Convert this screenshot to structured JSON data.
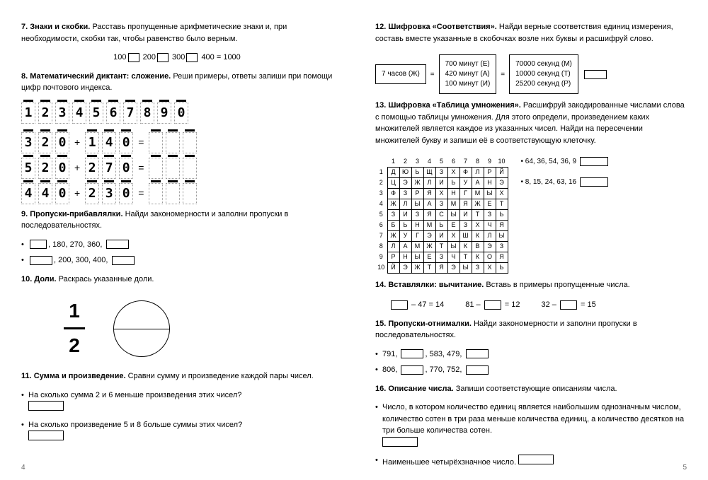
{
  "left": {
    "t7": {
      "num": "7.",
      "title": "Знаки и скобки.",
      "text": "Расставь пропущенные арифметические знаки и, при необходимости, скобки так, чтобы равенство было верным.",
      "expr_parts": [
        "100",
        "200",
        "300",
        "400 = 1000"
      ]
    },
    "t8": {
      "num": "8.",
      "title": "Математический диктант: сложение.",
      "text": "Реши примеры, ответы запиши при помощи цифр почтового индекса.",
      "sample": [
        "1",
        "2",
        "3",
        "4",
        "5",
        "6",
        "7",
        "8",
        "9",
        "0"
      ],
      "rows": [
        {
          "a": [
            "3",
            "2",
            "0"
          ],
          "op": "+",
          "b": [
            "1",
            "4",
            "0"
          ]
        },
        {
          "a": [
            "5",
            "2",
            "0"
          ],
          "op": "+",
          "b": [
            "2",
            "7",
            "0"
          ]
        },
        {
          "a": [
            "4",
            "4",
            "0"
          ],
          "op": "+",
          "b": [
            "2",
            "3",
            "0"
          ]
        }
      ]
    },
    "t9": {
      "num": "9.",
      "title": "Пропуски-прибавлялки.",
      "text": "Найди закономерности и заполни пропуски в последовательностях.",
      "seqs": [
        {
          "pre_blank": 2,
          "mid": ", 180, 270, 360, ",
          "post_blank": 3
        },
        {
          "pre_blank": 3,
          "mid": ", 200, 300, 400, ",
          "post_blank": 3
        }
      ]
    },
    "t10": {
      "num": "10.",
      "title": "Доли.",
      "text": "Раскрась указанные доли.",
      "frac_n": "1",
      "frac_d": "2"
    },
    "t11": {
      "num": "11.",
      "title": "Сумма и произведение.",
      "text": "Сравни сумму и произведение каждой пары чисел.",
      "q1": "На сколько сумма 2 и 6 меньше произведения этих чисел?",
      "q2": "На сколько произведение 5 и 8 больше суммы этих чисел?"
    },
    "pagenum": "4"
  },
  "right": {
    "t12": {
      "num": "12.",
      "title": "Шифровка «Соответствия».",
      "text": "Найди верные соответствия единиц измерения, составь вместе указанные в скобочках возле них буквы и расшифруй слово.",
      "col1": "7 часов (Ж)",
      "col2": [
        "700 минут (Е)",
        "420 минут (А)",
        "100 минут (И)"
      ],
      "col3": [
        "70000 секунд (М)",
        "10000 секунд (Т)",
        "25200 секунд (Р)"
      ]
    },
    "t13": {
      "num": "13.",
      "title": "Шифровка «Таблица умножения».",
      "text": "Расшифруй закодированные числами слова с помощью таблицы умножения. Для этого определи, произведением каких множителей является каждое из указанных чисел. Найди на пересечении множителей букву и запиши её в соответствующую клеточку.",
      "cols": [
        "1",
        "2",
        "3",
        "4",
        "5",
        "6",
        "7",
        "8",
        "9",
        "10"
      ],
      "rows": [
        [
          "Д",
          "Ю",
          "Ь",
          "Щ",
          "З",
          "Х",
          "Ф",
          "Л",
          "Р",
          "Й"
        ],
        [
          "Ц",
          "Э",
          "Ж",
          "Л",
          "И",
          "Ь",
          "У",
          "А",
          "Н",
          "Э"
        ],
        [
          "Ф",
          "З",
          "Р",
          "Я",
          "Х",
          "Н",
          "Г",
          "М",
          "Ы",
          "Х"
        ],
        [
          "Ж",
          "Л",
          "Ы",
          "А",
          "З",
          "М",
          "Я",
          "Ж",
          "Е",
          "Т"
        ],
        [
          "З",
          "И",
          "З",
          "Я",
          "С",
          "Ы",
          "И",
          "Т",
          "З",
          "Ь"
        ],
        [
          "Б",
          "Ь",
          "Н",
          "М",
          "Ь",
          "Е",
          "З",
          "Х",
          "Ч",
          "Я"
        ],
        [
          "Ж",
          "У",
          "Г",
          "Э",
          "И",
          "Х",
          "Ш",
          "К",
          "Л",
          "Ы"
        ],
        [
          "Л",
          "А",
          "М",
          "Ж",
          "Т",
          "Ы",
          "К",
          "В",
          "Э",
          "З"
        ],
        [
          "Р",
          "Н",
          "Ы",
          "Е",
          "З",
          "Ч",
          "Т",
          "К",
          "О",
          "Я"
        ],
        [
          "Й",
          "Э",
          "Ж",
          "Т",
          "Я",
          "Э",
          "Ы",
          "З",
          "Х",
          "Ь"
        ]
      ],
      "codes": [
        "64, 36, 54, 36, 9",
        "8, 15, 24, 63, 16"
      ]
    },
    "t14": {
      "num": "14.",
      "title": "Вставлялки: вычитание.",
      "text": "Вставь в примеры пропущенные числа.",
      "eqs": [
        {
          "pre": "",
          "blank": true,
          "mid": " – 47 = 14"
        },
        {
          "pre": "81 – ",
          "blank": true,
          "mid": " = 12"
        },
        {
          "pre": "32 – ",
          "blank": true,
          "mid": " = 15"
        }
      ]
    },
    "t15": {
      "num": "15.",
      "title": "Пропуски-отнималки.",
      "text": "Найди закономерности и заполни пропуски в последовательностях.",
      "seqs": [
        "791,        , 583, 479,",
        "806,        , 770, 752,"
      ]
    },
    "t16": {
      "num": "16.",
      "title": "Описание числа.",
      "text": "Запиши соответствующие описаниям числа.",
      "q1": "Число, в котором количество единиц является наибольшим однозначным числом, количество сотен в три раза меньше количества единиц, а количество десятков на три больше количества сотен.",
      "q2": "Наименьшее четырёхзначное число."
    },
    "pagenum": "5"
  }
}
